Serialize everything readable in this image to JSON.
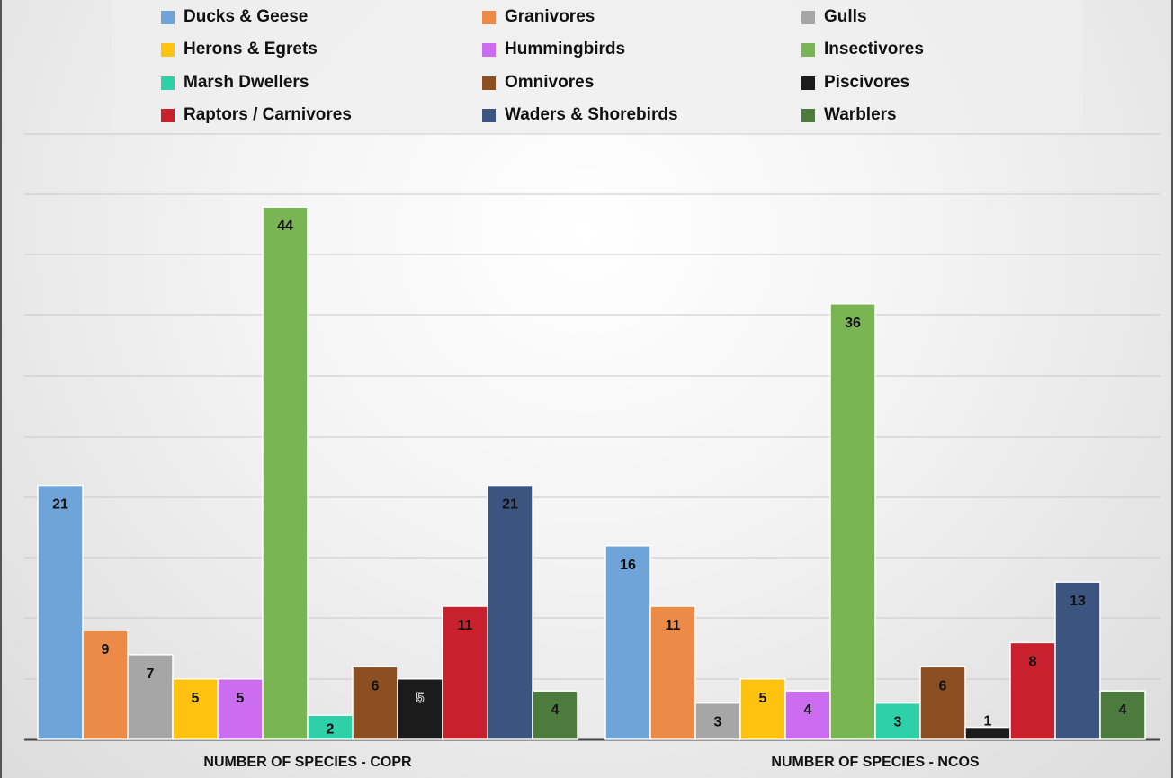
{
  "chart_data": {
    "type": "bar",
    "title": "",
    "xlabel": "",
    "ylabel": "",
    "ylim": [
      0,
      44
    ],
    "grid": true,
    "legend_position": "top",
    "categories": [
      "NUMBER OF SPECIES - COPR",
      "NUMBER OF SPECIES - NCOS"
    ],
    "series": [
      {
        "name": "Ducks & Geese",
        "color": "#6fa4d8",
        "values": [
          21,
          16
        ]
      },
      {
        "name": "Granivores",
        "color": "#ec8b48",
        "values": [
          9,
          11
        ]
      },
      {
        "name": "Gulls",
        "color": "#a6a6a6",
        "values": [
          7,
          3
        ]
      },
      {
        "name": "Herons & Egrets",
        "color": "#ffc20e",
        "values": [
          5,
          5
        ]
      },
      {
        "name": "Hummingbirds",
        "color": "#cc6cf0",
        "values": [
          5,
          4
        ]
      },
      {
        "name": "Insectivores",
        "color": "#7ab554",
        "values": [
          44,
          36
        ]
      },
      {
        "name": "Marsh Dwellers",
        "color": "#2ed0a8",
        "values": [
          2,
          3
        ]
      },
      {
        "name": "Omnivores",
        "color": "#8b4f22",
        "values": [
          6,
          6
        ]
      },
      {
        "name": "Piscivores",
        "color": "#1b1b1b",
        "values": [
          5,
          1
        ]
      },
      {
        "name": "Raptors / Carnivores",
        "color": "#c8202c",
        "values": [
          11,
          8
        ]
      },
      {
        "name": "Waders & Shorebirds",
        "color": "#3b5580",
        "values": [
          21,
          13
        ]
      },
      {
        "name": "Warblers",
        "color": "#4d7a3d",
        "values": [
          4,
          4
        ]
      }
    ]
  }
}
